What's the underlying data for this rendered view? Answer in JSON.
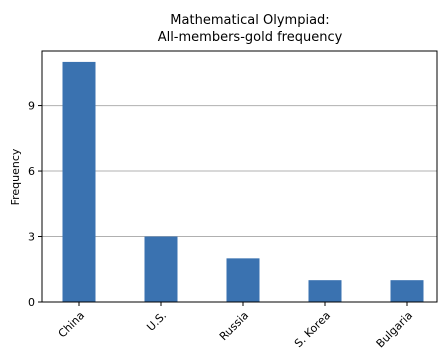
{
  "chart_data": {
    "type": "bar",
    "title": "Mathematical Olympiad:",
    "subtitle": "All-members-gold frequency",
    "xlabel": "",
    "ylabel": "Frequency",
    "categories": [
      "China",
      "U.S.",
      "Russia",
      "S. Korea",
      "Bulgaria"
    ],
    "values": [
      11,
      3,
      2,
      1,
      1
    ],
    "ylim": [
      0,
      11.5
    ],
    "yticks": [
      0,
      3,
      6,
      9
    ],
    "grid": "horizontal",
    "bar_color": "#3a72b0"
  }
}
